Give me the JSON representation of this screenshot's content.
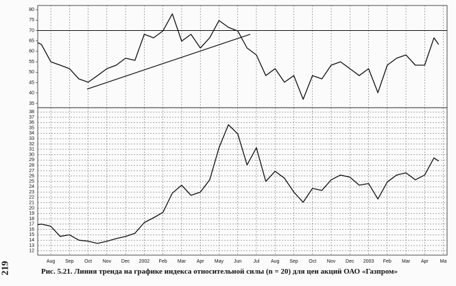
{
  "page_number": "219",
  "caption": "Рис. 5.21. Линия тренда на графике индекса относительной силы (n = 20) для цен акций ОАО «Газпром»",
  "chart_data": [
    {
      "type": "line",
      "x": [
        -0.7,
        -0.5,
        0,
        0.5,
        1,
        1.5,
        2,
        2.5,
        3,
        3.5,
        4,
        4.5,
        5,
        5.5,
        6,
        6.5,
        7,
        7.5,
        8,
        8.5,
        9,
        9.5,
        10,
        10.5,
        11,
        11.5,
        12,
        12.5,
        13,
        13.5,
        14,
        14.5,
        15,
        15.5,
        16,
        16.5,
        17,
        17.5,
        18,
        18.5,
        19,
        19.5,
        20,
        20.5,
        20.75
      ],
      "series": [
        {
          "color": "#111111",
          "values": [
            64.2,
            63.3,
            55,
            53.4,
            51.7,
            46.8,
            45.2,
            48.4,
            51.7,
            53.4,
            56.7,
            55.7,
            68.2,
            66.5,
            69.8,
            78,
            64.9,
            68.2,
            61.6,
            66.5,
            74.8,
            71.5,
            69.8,
            61.6,
            58.3,
            48.4,
            51.7,
            45.2,
            48.4,
            37,
            48.4,
            46.8,
            53.4,
            55,
            51.7,
            48.4,
            51.7,
            40.2,
            53.4,
            56.7,
            58.3,
            53.4,
            53.4,
            66.5,
            63.3
          ]
        }
      ],
      "xlim": [
        -0.7,
        21.2
      ],
      "xticks": [
        0,
        1,
        2,
        3,
        4,
        5,
        6,
        7,
        8,
        9,
        10,
        11,
        12,
        13,
        14,
        15,
        16,
        17,
        18,
        19,
        20,
        21
      ],
      "ylim": [
        33,
        82
      ],
      "yticks": [
        35,
        40,
        45,
        50,
        55,
        60,
        65,
        70,
        75,
        80
      ],
      "reference_lines": [
        70
      ],
      "trend_line": {
        "x": [
          1.94,
          10.67
        ],
        "y": [
          41.9,
          68.2
        ]
      },
      "grid": true
    },
    {
      "type": "line",
      "x": [
        -0.7,
        -0.5,
        0,
        0.5,
        1,
        1.5,
        2,
        2.5,
        3,
        3.5,
        4,
        4.5,
        5,
        5.5,
        6,
        6.5,
        7,
        7.5,
        8,
        8.5,
        9,
        9.5,
        10,
        10.5,
        11,
        11.5,
        12,
        12.5,
        13,
        13.5,
        14,
        14.5,
        15,
        15.5,
        16,
        16.5,
        17,
        17.5,
        18,
        18.5,
        19,
        19.5,
        20,
        20.5,
        20.75
      ],
      "series": [
        {
          "color": "#111111",
          "values": [
            16.9,
            17,
            16.6,
            14.7,
            15,
            14,
            13.8,
            13.4,
            13.8,
            14.3,
            14.7,
            15.3,
            17.3,
            18.2,
            19.2,
            22.8,
            24.3,
            22.4,
            23,
            25.3,
            31.3,
            35.6,
            33.9,
            28.1,
            31.3,
            25,
            26.9,
            25.6,
            23,
            21.1,
            23.7,
            23.3,
            25.3,
            26.2,
            25.8,
            24.3,
            24.6,
            21.7,
            24.9,
            26.2,
            26.6,
            25.3,
            26.2,
            29.4,
            28.8
          ]
        }
      ],
      "xlim": [
        -0.7,
        21.2
      ],
      "xticks": [
        {
          "value": 0,
          "label": "Aug"
        },
        {
          "value": 1,
          "label": "Sep"
        },
        {
          "value": 2,
          "label": "Oct"
        },
        {
          "value": 3,
          "label": "Nov"
        },
        {
          "value": 4,
          "label": "Dec"
        },
        {
          "value": 5,
          "label": "2002"
        },
        {
          "value": 6,
          "label": "Feb"
        },
        {
          "value": 7,
          "label": "Mar"
        },
        {
          "value": 8,
          "label": "Apr"
        },
        {
          "value": 9,
          "label": "May"
        },
        {
          "value": 10,
          "label": "Jun"
        },
        {
          "value": 11,
          "label": "Jul"
        },
        {
          "value": 12,
          "label": "Aug"
        },
        {
          "value": 13,
          "label": "Sep"
        },
        {
          "value": 14,
          "label": "Oct"
        },
        {
          "value": 15,
          "label": "Nov"
        },
        {
          "value": 16,
          "label": "Dec"
        },
        {
          "value": 17,
          "label": "2003"
        },
        {
          "value": 18,
          "label": "Feb"
        },
        {
          "value": 19,
          "label": "Mar"
        },
        {
          "value": 20,
          "label": "Apr"
        },
        {
          "value": 21,
          "label": "Ma"
        }
      ],
      "ylim": [
        11.2,
        38.8
      ],
      "yticks": [
        12,
        13,
        14,
        15,
        16,
        17,
        18,
        19,
        20,
        21,
        22,
        23,
        24,
        25,
        26,
        27,
        28,
        29,
        30,
        31,
        32,
        33,
        34,
        35,
        36,
        37,
        38
      ],
      "grid": true
    }
  ]
}
